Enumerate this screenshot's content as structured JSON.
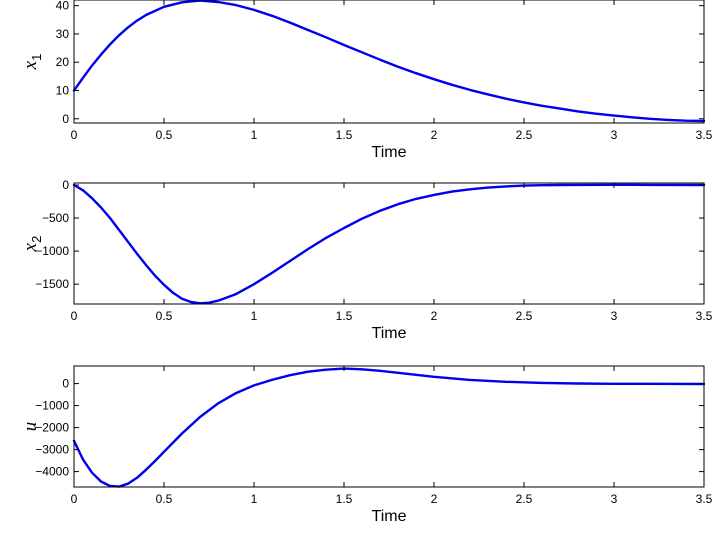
{
  "colors": {
    "line": "#0000ee",
    "axes": "#000000",
    "background": "#ffffff"
  },
  "chart_data": [
    {
      "type": "line",
      "title": "",
      "xlabel": "Time",
      "ylabel": {
        "base": "x",
        "sub": "1"
      },
      "xlim": [
        0,
        3.5
      ],
      "ylim": [
        -1.5,
        42
      ],
      "xticks": [
        0,
        0.5,
        1,
        1.5,
        2,
        2.5,
        3,
        3.5
      ],
      "xtick_labels": [
        "0",
        "0.5",
        "1",
        "1.5",
        "2",
        "2.5",
        "3",
        "3.5"
      ],
      "yticks": [
        0,
        10,
        20,
        30,
        40
      ],
      "ytick_labels": [
        "0",
        "10",
        "20",
        "30",
        "40"
      ],
      "grid": false,
      "series": [
        {
          "x": [
            0,
            0.05,
            0.1,
            0.15,
            0.2,
            0.25,
            0.3,
            0.35,
            0.4,
            0.5,
            0.6,
            0.7,
            0.8,
            0.9,
            1.0,
            1.1,
            1.2,
            1.3,
            1.4,
            1.5,
            1.6,
            1.7,
            1.8,
            1.9,
            2.0,
            2.1,
            2.2,
            2.3,
            2.4,
            2.5,
            2.6,
            2.7,
            2.8,
            2.9,
            3.0,
            3.1,
            3.2,
            3.3,
            3.4,
            3.5
          ],
          "y": [
            10,
            14.5,
            18.8,
            22.7,
            26.3,
            29.5,
            32.3,
            34.7,
            36.7,
            39.6,
            41.2,
            41.8,
            41.3,
            40.2,
            38.5,
            36.4,
            34.0,
            31.4,
            28.8,
            26.1,
            23.5,
            20.9,
            18.4,
            16.1,
            14.0,
            12.0,
            10.2,
            8.6,
            7.1,
            5.8,
            4.6,
            3.6,
            2.6,
            1.8,
            1.1,
            0.5,
            0.0,
            -0.4,
            -0.7,
            -0.8
          ]
        }
      ]
    },
    {
      "type": "line",
      "title": "",
      "xlabel": "Time",
      "ylabel": {
        "base": "x",
        "sub": "2"
      },
      "xlim": [
        0,
        3.5
      ],
      "ylim": [
        -1800,
        30
      ],
      "xticks": [
        0,
        0.5,
        1,
        1.5,
        2,
        2.5,
        3,
        3.5
      ],
      "xtick_labels": [
        "0",
        "0.5",
        "1",
        "1.5",
        "2",
        "2.5",
        "3",
        "3.5"
      ],
      "yticks": [
        -1500,
        -1000,
        -500,
        0
      ],
      "ytick_labels": [
        "−1500",
        "−1000",
        "−500",
        "0"
      ],
      "grid": false,
      "series": [
        {
          "x": [
            0,
            0.05,
            0.1,
            0.15,
            0.2,
            0.25,
            0.3,
            0.35,
            0.4,
            0.45,
            0.5,
            0.55,
            0.6,
            0.65,
            0.7,
            0.75,
            0.8,
            0.9,
            1.0,
            1.1,
            1.2,
            1.3,
            1.4,
            1.5,
            1.6,
            1.7,
            1.8,
            1.9,
            2.0,
            2.1,
            2.2,
            2.3,
            2.4,
            2.5,
            2.6,
            2.7,
            2.8,
            3.0,
            3.2,
            3.5
          ],
          "y": [
            0,
            -80,
            -200,
            -340,
            -500,
            -680,
            -860,
            -1040,
            -1210,
            -1370,
            -1510,
            -1630,
            -1720,
            -1770,
            -1790,
            -1780,
            -1750,
            -1650,
            -1500,
            -1330,
            -1150,
            -970,
            -800,
            -650,
            -510,
            -390,
            -290,
            -210,
            -150,
            -100,
            -65,
            -40,
            -22,
            -10,
            -3,
            0,
            2,
            3,
            2,
            0
          ]
        }
      ]
    },
    {
      "type": "line",
      "title": "",
      "xlabel": "Time",
      "ylabel": {
        "base": "u",
        "sub": ""
      },
      "xlim": [
        0,
        3.5
      ],
      "ylim": [
        -4700,
        800
      ],
      "xticks": [
        0,
        0.5,
        1,
        1.5,
        2,
        2.5,
        3,
        3.5
      ],
      "xtick_labels": [
        "0",
        "0.5",
        "1",
        "1.5",
        "2",
        "2.5",
        "3",
        "3.5"
      ],
      "yticks": [
        -4000,
        -3000,
        -2000,
        -1000,
        0
      ],
      "ytick_labels": [
        "−4000",
        "−3000",
        "−2000",
        "−1000",
        "0"
      ],
      "grid": false,
      "series": [
        {
          "x": [
            0,
            0.05,
            0.1,
            0.15,
            0.2,
            0.25,
            0.3,
            0.35,
            0.4,
            0.45,
            0.5,
            0.55,
            0.6,
            0.7,
            0.8,
            0.9,
            1.0,
            1.1,
            1.2,
            1.3,
            1.4,
            1.5,
            1.6,
            1.7,
            1.8,
            1.9,
            2.0,
            2.2,
            2.4,
            2.6,
            2.8,
            3.0,
            3.2,
            3.5
          ],
          "y": [
            -2600,
            -3450,
            -4050,
            -4450,
            -4650,
            -4680,
            -4550,
            -4280,
            -3920,
            -3520,
            -3100,
            -2680,
            -2270,
            -1520,
            -900,
            -430,
            -80,
            170,
            380,
            540,
            630,
            680,
            650,
            580,
            490,
            400,
            310,
            170,
            80,
            30,
            5,
            -10,
            -10,
            -20
          ]
        }
      ]
    }
  ]
}
